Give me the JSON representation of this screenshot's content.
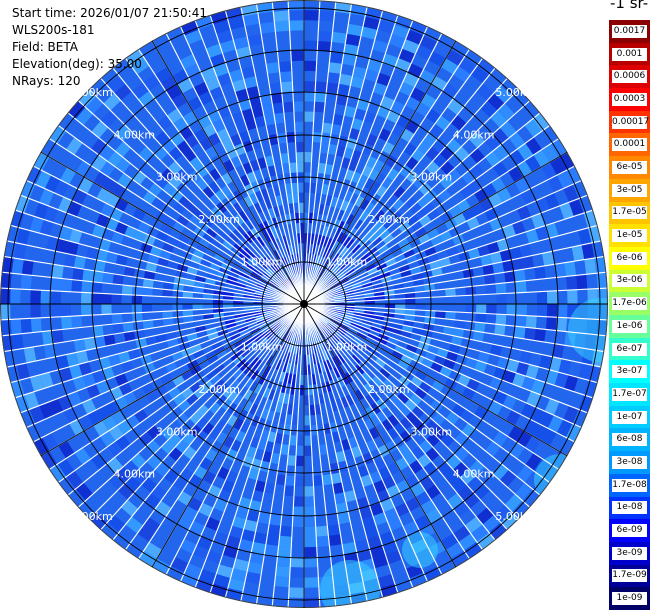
{
  "header": {
    "start_time": "Start time: 2026/01/07 21:50:41",
    "station": "WLS200s-181",
    "field": "Field: BETA",
    "elevation": "Elevation(deg): 35.00",
    "nrays": "NRays: 120"
  },
  "colorbar": {
    "unit_fragment": "-1 sr-",
    "labels": [
      "0.0017",
      "0.001",
      "0.0006",
      "0.0003",
      "0.00017",
      "0.0001",
      "6e-05",
      "3e-05",
      "1.7e-05",
      "1e-05",
      "6e-06",
      "3e-06",
      "1.7e-06",
      "1e-06",
      "6e-07",
      "3e-07",
      "1.7e-07",
      "1e-07",
      "6e-08",
      "3e-08",
      "1.7e-08",
      "1e-08",
      "6e-09",
      "3e-09",
      "1.7e-09",
      "1e-09"
    ],
    "colors": [
      "#8b0000",
      "#b80000",
      "#dd0000",
      "#ff0000",
      "#ff3300",
      "#ff6600",
      "#ff8800",
      "#ffa500",
      "#ffc400",
      "#ffe000",
      "#ffff00",
      "#ccff33",
      "#99ff66",
      "#66ff99",
      "#33ffcc",
      "#00ffff",
      "#00e6ff",
      "#00ccff",
      "#00b3ff",
      "#0099ff",
      "#0066ff",
      "#0033ff",
      "#0000ff",
      "#0000cc",
      "#000099",
      "#000066"
    ]
  },
  "range_labels": [
    "1.00km",
    "2.00km",
    "3.00km",
    "4.00km",
    "5.00km"
  ],
  "colors": {
    "background_field": "#2266ee",
    "ray_line": "#ffffff",
    "ring": "#000000"
  }
}
